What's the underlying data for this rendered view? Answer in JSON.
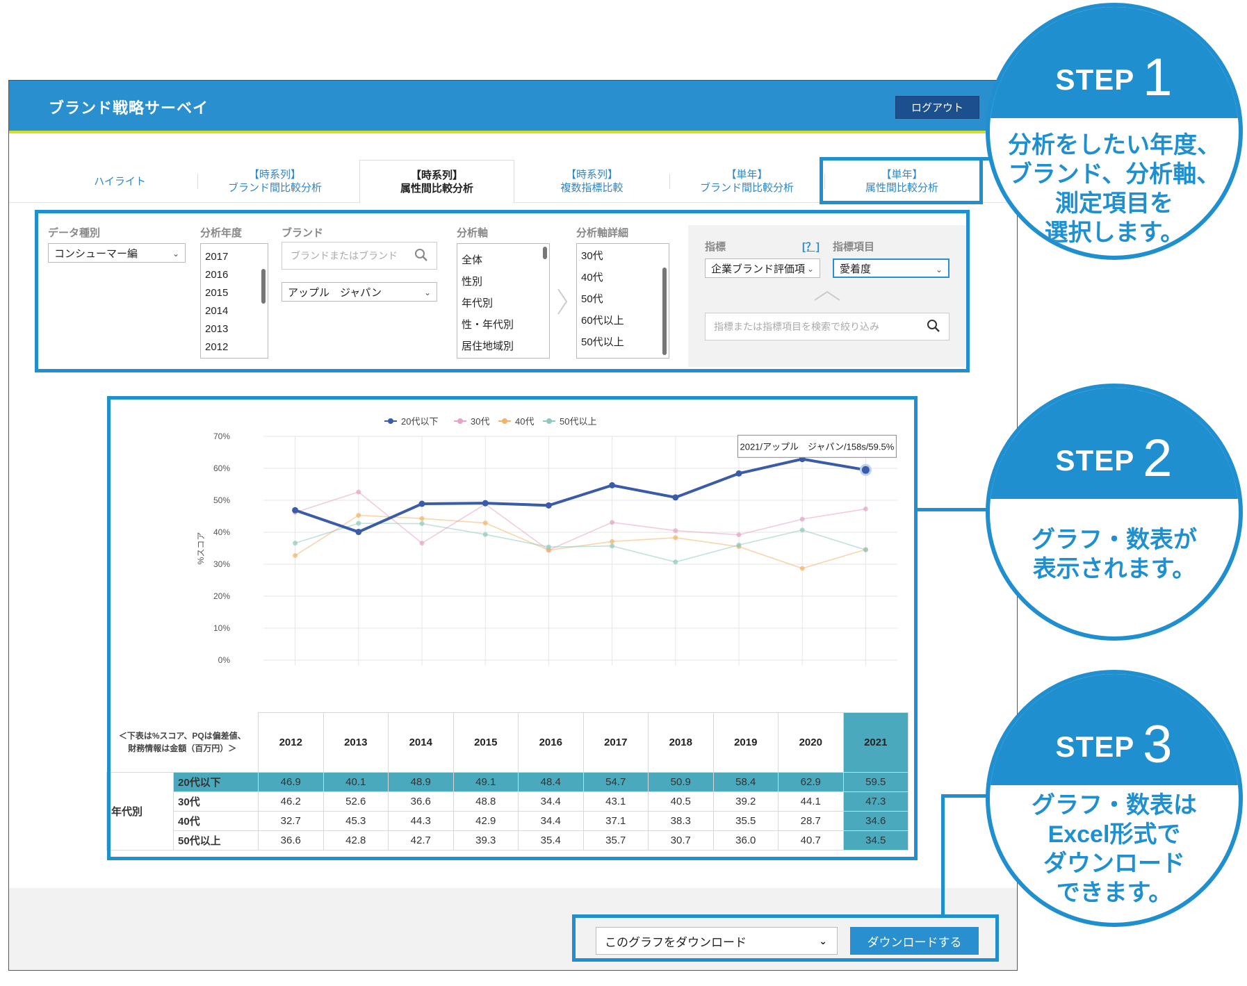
{
  "app": {
    "title": "ブランド戦略サーベイ",
    "logout_label": "ログアウト"
  },
  "tabs": [
    {
      "line1": "ハイライト",
      "line2": ""
    },
    {
      "line1": "【時系列】",
      "line2": "ブランド間比較分析"
    },
    {
      "line1": "【時系列】",
      "line2": "属性間比較分析"
    },
    {
      "line1": "【時系列】",
      "line2": "複数指標比較"
    },
    {
      "line1": "【単年】",
      "line2": "ブランド間比較分析"
    },
    {
      "line1": "【単年】",
      "line2": "属性間比較分析"
    }
  ],
  "filters": {
    "data_type": {
      "label": "データ種別",
      "value": "コンシューマー編"
    },
    "year": {
      "label": "分析年度",
      "options": [
        "2017",
        "2016",
        "2015",
        "2014",
        "2013",
        "2012"
      ]
    },
    "brand": {
      "label": "ブランド",
      "placeholder": "ブランドまたはブランド",
      "value": "アップル　ジャパン"
    },
    "axis": {
      "label": "分析軸",
      "options": [
        "全体",
        "性別",
        "年代別",
        "性・年代別",
        "居住地域別"
      ]
    },
    "axis_detail": {
      "label": "分析軸詳細",
      "options": [
        "30代",
        "40代",
        "50代",
        "60代以上",
        "50代以上"
      ]
    },
    "indicator": {
      "label": "指標",
      "help": "[？]",
      "value": "企業ブランド評価項"
    },
    "indicator_item": {
      "label": "指標項目",
      "value": "愛着度"
    },
    "indicator_search_placeholder": "指標または指標項目を検索で絞り込み"
  },
  "chart_data": {
    "type": "line",
    "ylabel": "%スコア",
    "ylim": [
      0,
      70
    ],
    "yticks": [
      "0%",
      "10%",
      "20%",
      "30%",
      "40%",
      "50%",
      "60%",
      "70%"
    ],
    "x": [
      "2012",
      "2013",
      "2014",
      "2015",
      "2016",
      "2017",
      "2018",
      "2019",
      "2020",
      "2021"
    ],
    "series": [
      {
        "name": "20代以下",
        "color": "#3a5ba8",
        "values": [
          46.9,
          40.1,
          48.9,
          49.1,
          48.4,
          54.7,
          50.9,
          58.4,
          62.9,
          59.5
        ]
      },
      {
        "name": "30代",
        "color": "#e6a3c4",
        "values": [
          46.2,
          52.6,
          36.6,
          48.8,
          34.4,
          43.1,
          40.5,
          39.2,
          44.1,
          47.3
        ]
      },
      {
        "name": "40代",
        "color": "#f2b26a",
        "values": [
          32.7,
          45.3,
          44.3,
          42.9,
          34.4,
          37.1,
          38.3,
          35.5,
          28.7,
          34.6
        ]
      },
      {
        "name": "50代以上",
        "color": "#8fc9bd",
        "values": [
          36.6,
          42.8,
          42.7,
          39.3,
          35.4,
          35.7,
          30.7,
          36.0,
          40.7,
          34.5
        ]
      }
    ],
    "tooltip": "2021/アップル　ジャパン/158s/59.5%",
    "legend_position": "top"
  },
  "table": {
    "note_line1": "＜下表は%スコア、PQは偏差値、",
    "note_line2": "財務情報は金額（百万円）＞",
    "group_label": "年代別",
    "rows": [
      {
        "label": "20代以下",
        "values": [
          "46.9",
          "40.1",
          "48.9",
          "49.1",
          "48.4",
          "54.7",
          "50.9",
          "58.4",
          "62.9",
          "59.5"
        ]
      },
      {
        "label": "30代",
        "values": [
          "46.2",
          "52.6",
          "36.6",
          "48.8",
          "34.4",
          "43.1",
          "40.5",
          "39.2",
          "44.1",
          "47.3"
        ]
      },
      {
        "label": "40代",
        "values": [
          "32.7",
          "45.3",
          "44.3",
          "42.9",
          "34.4",
          "37.1",
          "38.3",
          "35.5",
          "28.7",
          "34.6"
        ]
      },
      {
        "label": "50代以上",
        "values": [
          "36.6",
          "42.8",
          "42.7",
          "39.3",
          "35.4",
          "35.7",
          "30.7",
          "36.0",
          "40.7",
          "34.5"
        ]
      }
    ]
  },
  "download": {
    "select_value": "このグラフをダウンロード",
    "button_label": "ダウンロードする"
  },
  "steps": [
    {
      "word": "STEP",
      "num": "1",
      "lines": [
        "分析をしたい年度、",
        "ブランド、分析軸、",
        "測定項目を",
        "選択します。"
      ]
    },
    {
      "word": "STEP",
      "num": "2",
      "lines": [
        "グラフ・数表が",
        "表示されます。"
      ]
    },
    {
      "word": "STEP",
      "num": "3",
      "lines": [
        "グラフ・数表は",
        "Excel形式で",
        "ダウンロード",
        "できます。"
      ]
    }
  ]
}
